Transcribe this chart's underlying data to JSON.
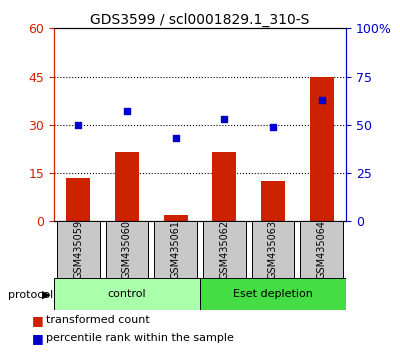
{
  "title": "GDS3599 / scl0001829.1_310-S",
  "samples": [
    "GSM435059",
    "GSM435060",
    "GSM435061",
    "GSM435062",
    "GSM435063",
    "GSM435064"
  ],
  "red_values": [
    13.5,
    21.5,
    2.0,
    21.5,
    12.5,
    45.0
  ],
  "blue_values": [
    50,
    57,
    43,
    53,
    49,
    63
  ],
  "red_color": "#CC2200",
  "blue_color": "#0000CC",
  "bar_width": 0.5,
  "xlim": [
    -0.5,
    5.5
  ],
  "red_ylim": [
    0,
    60
  ],
  "blue_ylim": [
    0,
    100
  ],
  "red_yticks": [
    0,
    15,
    30,
    45,
    60
  ],
  "blue_ytick_labels": [
    "0",
    "25",
    "50",
    "75",
    "100%"
  ],
  "blue_yticks": [
    0,
    25,
    50,
    75,
    100
  ],
  "grid_yticks": [
    15,
    30,
    45
  ],
  "bg_color": "#FFFFFF",
  "sample_area_color": "#C8C8C8",
  "control_color": "#AAFFAA",
  "depletion_color": "#44DD44",
  "protocol_label": "protocol",
  "red_legend": "transformed count",
  "blue_legend": "percentile rank within the sample",
  "title_fontsize": 10,
  "axis_fontsize": 9,
  "legend_fontsize": 8,
  "sample_fontsize": 7,
  "proto_fontsize": 8
}
